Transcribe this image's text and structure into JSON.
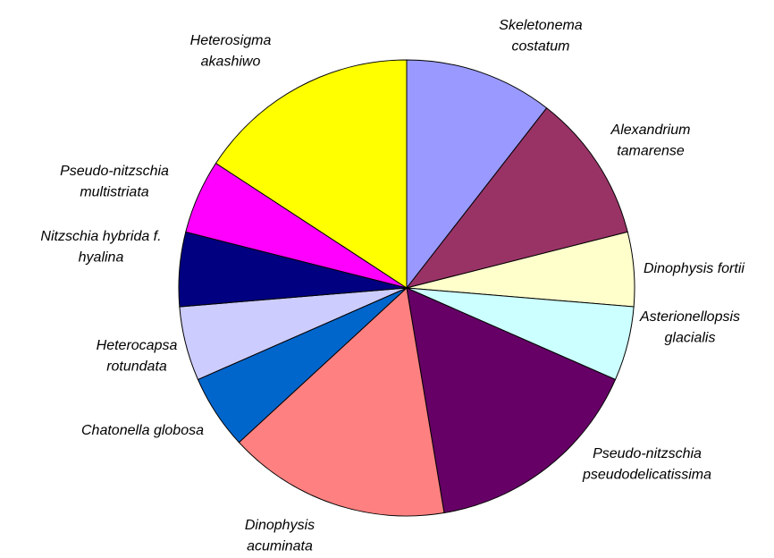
{
  "chart_data": {
    "type": "pie",
    "categories": [
      "Skeletonema costatum",
      "Alexandrium tamarense",
      "Dinophysis fortii",
      "Asterionellopsis glacialis",
      "Pseudo-nitzschia pseudodelicatissima",
      "Dinophysis acuminata",
      "Chatonella globosa",
      "Heterocapsa rotundata",
      "Nitzschia hybrida f. hyalina",
      "Pseudo-nitzschia multistriata",
      "Heterosigma akashiwo"
    ],
    "values": [
      2,
      2,
      1,
      1,
      3,
      3,
      1,
      1,
      1,
      1,
      3
    ],
    "colors": [
      "#9999ff",
      "#993366",
      "#ffffcc",
      "#ccffff",
      "#660066",
      "#ff8080",
      "#0066cc",
      "#ccccff",
      "#000080",
      "#ff00ff",
      "#ffff00"
    ]
  }
}
